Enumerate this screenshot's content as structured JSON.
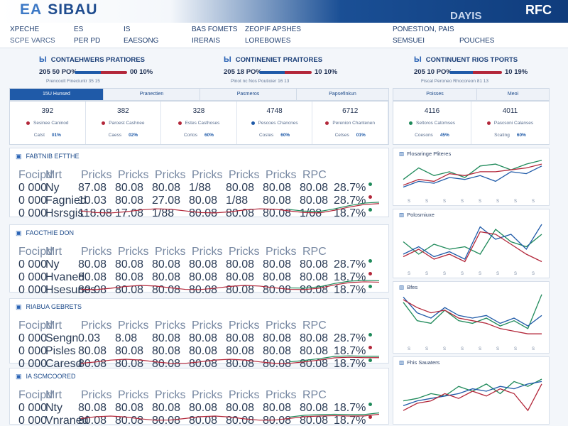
{
  "header": {
    "logo_prefix": "EA",
    "logo_text": "SIBAU",
    "brand_right": "DAYIS",
    "brand_far": "RFC"
  },
  "menu": [
    {
      "label": "XPECHE",
      "sub": "SCPE VARCS"
    },
    {
      "label": "ES",
      "sub": "PER PD"
    },
    {
      "label": "IS",
      "sub": "EAESONG"
    },
    {
      "label": "BAS FOMETS",
      "sub": "IRERAIS"
    },
    {
      "label": "ZEOPIF APSHES",
      "sub": "LOREBOWES"
    },
    {
      "label": "PONESTION, PAIS",
      "sub": "SEMSUEI"
    },
    {
      "label": "",
      "sub": "POUCHES"
    }
  ],
  "metrics": [
    {
      "title": "CONTAEHWERS PRATIORES",
      "left": "205 50 PO%",
      "right": "00 10%",
      "bar_fill": 0.5,
      "sub": "Prencoolt Fineciuntr 35 15"
    },
    {
      "title": "CONTINENIET PRAITORES",
      "left": "205 18 PO%",
      "right": "10 10%",
      "bar_fill": 0.48,
      "sub": "Pinot nc Nos Poutioier 16 13"
    },
    {
      "title": "CONTINUENT RIOS TPORTS",
      "left": "205 10 PO%",
      "right": "10 19%",
      "bar_fill": 0.45,
      "sub": "Fiscal Peroneo Rhocoreon 81 13"
    }
  ],
  "tabs": {
    "left": [
      "15U Hunsed",
      "Pranectien",
      "Pasmeros",
      "Papsefinkun"
    ],
    "right": [
      "Poisses",
      "Meoi"
    ]
  },
  "cards": [
    {
      "num": "392",
      "label": "Sesinee Caninod",
      "dot": "#b3273a",
      "sub": "Catst",
      "val": "01%"
    },
    {
      "num": "382",
      "label": "Paroest Cashnee",
      "dot": "#b3273a",
      "sub": "Caess",
      "val": "02%"
    },
    {
      "num": "328",
      "label": "Estes Casthoses",
      "dot": "#b3273a",
      "sub": "Cortos",
      "val": "60%"
    },
    {
      "num": "4748",
      "label": "Pescoes Chancnes",
      "dot": "#1f5aa8",
      "sub": "Costes",
      "val": "60%"
    },
    {
      "num": "6712",
      "label": "Perenion Chantenen",
      "dot": "#b3273a",
      "sub": "Cetses",
      "val": "01%"
    },
    {
      "num": "4116",
      "label": "Seltoros Catomses",
      "dot": "#1f8a5a",
      "sub": "Coesons",
      "val": "45%"
    },
    {
      "num": "4011",
      "label": "Pascsoni Calanses",
      "dot": "#b3273a",
      "sub": "Scating",
      "val": "60%"
    }
  ],
  "panels": [
    {
      "title": "FABTNIB EFTTHE",
      "header": [
        "Focipd",
        "Mrt",
        "Pricks",
        "Pricks",
        "Pricks",
        "Pricks",
        "Pricks",
        "Pricks",
        "RPC"
      ],
      "rows": [
        {
          "c0": "0 000",
          "c1": "Ny",
          "cells": [
            "87.08",
            "80.08",
            "80.08",
            "1/88",
            "80.08",
            "80.08",
            "80.08",
            "28.7%"
          ]
        },
        {
          "c0": "0 000",
          "c1": "Fagnied",
          "cells": [
            "10.03",
            "80.08",
            "27.08",
            "80.08",
            "1/88",
            "80.08",
            "80.08",
            "28.7%"
          ]
        },
        {
          "c0": "0 000",
          "c1": "Hsrsgis",
          "cells": [
            "118.08",
            "17.08",
            "1/88",
            "80.08",
            "80.08",
            "80.08",
            "1/08",
            "18.7%"
          ]
        }
      ]
    },
    {
      "title": "FAOCTHIE DON",
      "header": [
        "Focipd",
        "Mrt",
        "Pricks",
        "Pricks",
        "Pricks",
        "Pricks",
        "Pricks",
        "Pricks",
        "RPC"
      ],
      "rows": [
        {
          "c0": "0 000",
          "c1": "Ny",
          "cells": [
            "80.08",
            "80.08",
            "80.08",
            "80.08",
            "80.08",
            "80.08",
            "80.08",
            "28.7%"
          ]
        },
        {
          "c0": "0 000",
          "c1": "Hvaned",
          "cells": [
            "80.08",
            "80.08",
            "80.08",
            "80.08",
            "80.08",
            "80.08",
            "80.08",
            "18.7%"
          ]
        },
        {
          "c0": "0 000",
          "c1": "Hsesunes",
          "cells": [
            "80.08",
            "80.08",
            "80.08",
            "80.08",
            "80.08",
            "80.08",
            "80.08",
            "18.7%"
          ]
        }
      ]
    },
    {
      "title": "RIABUA GEBRETS",
      "header": [
        "Focipd",
        "Mrt",
        "Pricks",
        "Pricks",
        "Pricks",
        "Pricks",
        "Pricks",
        "Pricks",
        "RPC"
      ],
      "rows": [
        {
          "c0": "0 000",
          "c1": "Sengn",
          "cells": [
            "0.03",
            "8.08",
            "80.08",
            "80.08",
            "80.08",
            "80.08",
            "80.08",
            "28.7%"
          ]
        },
        {
          "c0": "0 000",
          "c1": "Pisles",
          "cells": [
            "80.08",
            "80.08",
            "80.08",
            "80.08",
            "80.08",
            "80.08",
            "80.08",
            "18.7%"
          ]
        },
        {
          "c0": "0 000",
          "c1": "Caresd",
          "cells": [
            "80.08",
            "80.08",
            "80.08",
            "80.08",
            "80.08",
            "80.08",
            "80.08",
            "18.7%"
          ]
        }
      ]
    },
    {
      "title": "IA SCMCOORED",
      "header": [
        "Focipd",
        "Mrt",
        "Pricks",
        "Pricks",
        "Pricks",
        "Pricks",
        "Pricks",
        "Pricks",
        "RPC"
      ],
      "rows": [
        {
          "c0": "0 000",
          "c1": "Nty",
          "cells": [
            "80.08",
            "80.08",
            "80.08",
            "80.08",
            "80.08",
            "80.08",
            "80.08",
            "18.7%"
          ]
        },
        {
          "c0": "0 000",
          "c1": "Vnraned",
          "cells": [
            "80.08",
            "80.08",
            "80.08",
            "80.08",
            "80.08",
            "80.08",
            "80.08",
            "18.7%"
          ]
        }
      ]
    }
  ],
  "side_charts": [
    {
      "title": "Flosaringe Pliteres",
      "xticks": [
        "S",
        "S",
        "S",
        "S",
        "S",
        "S",
        "S",
        "S"
      ],
      "green": [
        0.55,
        0.25,
        0.45,
        0.35,
        0.5,
        0.2,
        0.15,
        0.3,
        0.15,
        0.05
      ],
      "blue": [
        0.75,
        0.6,
        0.65,
        0.5,
        0.55,
        0.45,
        0.6,
        0.35,
        0.4,
        0.2
      ],
      "red": [
        0.7,
        0.55,
        0.6,
        0.4,
        0.45,
        0.35,
        0.35,
        0.3,
        0.25,
        0.15
      ]
    },
    {
      "title": "Polosmiuxe",
      "xticks": [
        "S",
        "S",
        "S",
        "S",
        "S",
        "S",
        "S",
        "S"
      ],
      "green": [
        0.45,
        0.7,
        0.5,
        0.6,
        0.55,
        0.7,
        0.2,
        0.45,
        0.55,
        0.3
      ],
      "blue": [
        0.7,
        0.55,
        0.75,
        0.65,
        0.8,
        0.15,
        0.4,
        0.3,
        0.6,
        0.1
      ],
      "red": [
        0.75,
        0.6,
        0.8,
        0.7,
        0.85,
        0.25,
        0.3,
        0.5,
        0.7,
        0.85
      ]
    },
    {
      "title": "Bfes",
      "xticks": [
        "S",
        "S",
        "S",
        "S",
        "S",
        "S",
        "S",
        "S"
      ],
      "green": [
        0.2,
        0.55,
        0.6,
        0.35,
        0.55,
        0.6,
        0.5,
        0.65,
        0.55,
        0.7,
        0.05
      ],
      "blue": [
        0.1,
        0.4,
        0.5,
        0.3,
        0.45,
        0.5,
        0.45,
        0.6,
        0.5,
        0.65,
        0.45
      ],
      "red": [
        0.15,
        0.3,
        0.4,
        0.35,
        0.5,
        0.55,
        0.6,
        0.7,
        0.75,
        0.8,
        0.8
      ]
    },
    {
      "title": "Fhis Sauaters",
      "xticks": [
        "",
        "",
        "",
        "",
        "",
        "",
        "",
        ""
      ],
      "green": [
        0.7,
        0.65,
        0.55,
        0.6,
        0.4,
        0.5,
        0.35,
        0.55,
        0.3,
        0.4,
        0.25
      ],
      "blue": [
        0.8,
        0.7,
        0.65,
        0.6,
        0.55,
        0.45,
        0.5,
        0.4,
        0.45,
        0.35,
        0.3
      ],
      "red": [
        0.9,
        0.75,
        0.7,
        0.55,
        0.65,
        0.5,
        0.6,
        0.45,
        0.55,
        0.9,
        0.35
      ]
    }
  ],
  "colors": {
    "blue": "#1f5aa8",
    "red": "#b3273a",
    "green": "#1f8a5a"
  }
}
